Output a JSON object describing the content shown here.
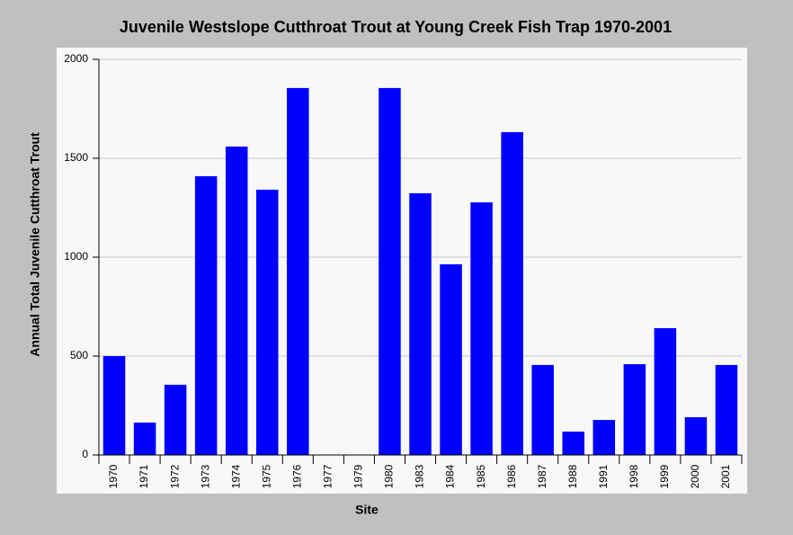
{
  "chart_data": {
    "type": "bar",
    "title": "Juvenile Westslope Cutthroat Trout at Young Creek Fish Trap 1970-2001",
    "x_label": "Site",
    "y_label": "Annual Total Juvenile Cutthroat Trout",
    "categories": [
      "1970",
      "1971",
      "1972",
      "1973",
      "1974",
      "1975",
      "1976",
      "1977",
      "1979",
      "1980",
      "1983",
      "1984",
      "1985",
      "1986",
      "1987",
      "1988",
      "1991",
      "1998",
      "1999",
      "2000",
      "2001"
    ],
    "values": [
      500,
      164,
      355,
      1409,
      1559,
      1341,
      1855,
      0,
      0,
      1855,
      1323,
      964,
      1277,
      1632,
      455,
      118,
      177,
      459,
      641,
      191,
      455
    ],
    "color": "#0000ff",
    "ylim": [
      0,
      2000
    ],
    "yticks": [
      0,
      500,
      1000,
      1500,
      2000
    ],
    "grid": true
  }
}
